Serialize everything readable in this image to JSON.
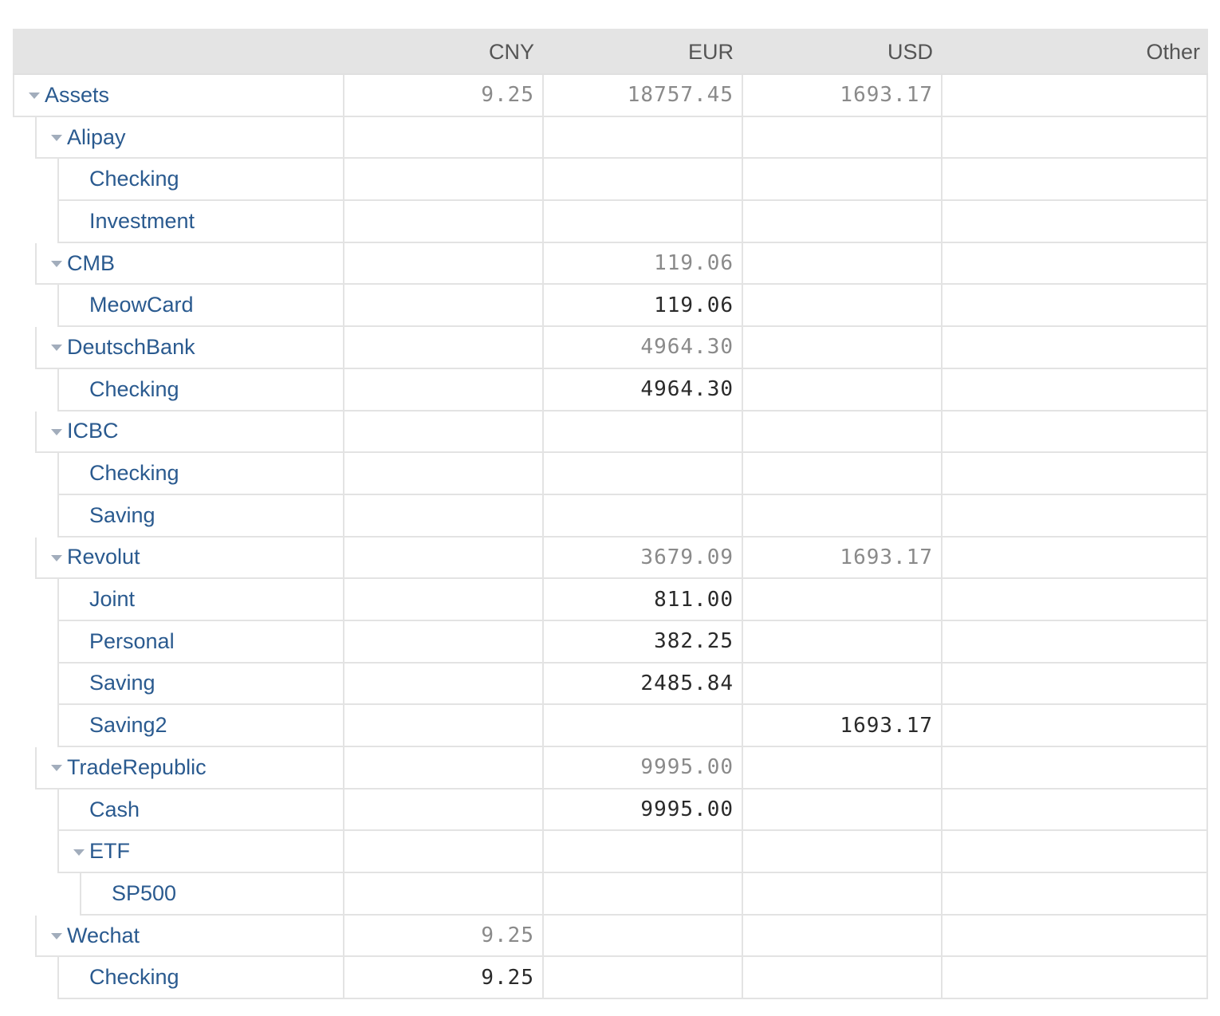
{
  "columns": [
    "CNY",
    "EUR",
    "USD",
    "Other"
  ],
  "rows": [
    {
      "name": "Assets",
      "depth": 0,
      "toggle": true,
      "cny": "9.25",
      "eur": "18757.45",
      "usd": "1693.17",
      "other": "",
      "kind": "total"
    },
    {
      "name": "Alipay",
      "depth": 1,
      "toggle": true,
      "cny": "",
      "eur": "",
      "usd": "",
      "other": "",
      "kind": "total"
    },
    {
      "name": "Checking",
      "depth": 2,
      "toggle": false,
      "cny": "",
      "eur": "",
      "usd": "",
      "other": "",
      "kind": "leaf"
    },
    {
      "name": "Investment",
      "depth": 2,
      "toggle": false,
      "cny": "",
      "eur": "",
      "usd": "",
      "other": "",
      "kind": "leaf"
    },
    {
      "name": "CMB",
      "depth": 1,
      "toggle": true,
      "cny": "",
      "eur": "119.06",
      "usd": "",
      "other": "",
      "kind": "total"
    },
    {
      "name": "MeowCard",
      "depth": 2,
      "toggle": false,
      "cny": "",
      "eur": "119.06",
      "usd": "",
      "other": "",
      "kind": "leaf"
    },
    {
      "name": "DeutschBank",
      "depth": 1,
      "toggle": true,
      "cny": "",
      "eur": "4964.30",
      "usd": "",
      "other": "",
      "kind": "total"
    },
    {
      "name": "Checking",
      "depth": 2,
      "toggle": false,
      "cny": "",
      "eur": "4964.30",
      "usd": "",
      "other": "",
      "kind": "leaf"
    },
    {
      "name": "ICBC",
      "depth": 1,
      "toggle": true,
      "cny": "",
      "eur": "",
      "usd": "",
      "other": "",
      "kind": "total"
    },
    {
      "name": "Checking",
      "depth": 2,
      "toggle": false,
      "cny": "",
      "eur": "",
      "usd": "",
      "other": "",
      "kind": "leaf"
    },
    {
      "name": "Saving",
      "depth": 2,
      "toggle": false,
      "cny": "",
      "eur": "",
      "usd": "",
      "other": "",
      "kind": "leaf"
    },
    {
      "name": "Revolut",
      "depth": 1,
      "toggle": true,
      "cny": "",
      "eur": "3679.09",
      "usd": "1693.17",
      "other": "",
      "kind": "total"
    },
    {
      "name": "Joint",
      "depth": 2,
      "toggle": false,
      "cny": "",
      "eur": "811.00",
      "usd": "",
      "other": "",
      "kind": "leaf"
    },
    {
      "name": "Personal",
      "depth": 2,
      "toggle": false,
      "cny": "",
      "eur": "382.25",
      "usd": "",
      "other": "",
      "kind": "leaf"
    },
    {
      "name": "Saving",
      "depth": 2,
      "toggle": false,
      "cny": "",
      "eur": "2485.84",
      "usd": "",
      "other": "",
      "kind": "leaf"
    },
    {
      "name": "Saving2",
      "depth": 2,
      "toggle": false,
      "cny": "",
      "eur": "",
      "usd": "1693.17",
      "other": "",
      "kind": "leaf"
    },
    {
      "name": "TradeRepublic",
      "depth": 1,
      "toggle": true,
      "cny": "",
      "eur": "9995.00",
      "usd": "",
      "other": "",
      "kind": "total"
    },
    {
      "name": "Cash",
      "depth": 2,
      "toggle": false,
      "cny": "",
      "eur": "9995.00",
      "usd": "",
      "other": "",
      "kind": "leaf"
    },
    {
      "name": "ETF",
      "depth": 2,
      "toggle": true,
      "cny": "",
      "eur": "",
      "usd": "",
      "other": "",
      "kind": "total"
    },
    {
      "name": "SP500",
      "depth": 3,
      "toggle": false,
      "cny": "",
      "eur": "",
      "usd": "",
      "other": "",
      "kind": "leaf"
    },
    {
      "name": "Wechat",
      "depth": 1,
      "toggle": true,
      "cny": "9.25",
      "eur": "",
      "usd": "",
      "other": "",
      "kind": "total"
    },
    {
      "name": "Checking",
      "depth": 2,
      "toggle": false,
      "cny": "9.25",
      "eur": "",
      "usd": "",
      "other": "",
      "kind": "leaf"
    }
  ]
}
